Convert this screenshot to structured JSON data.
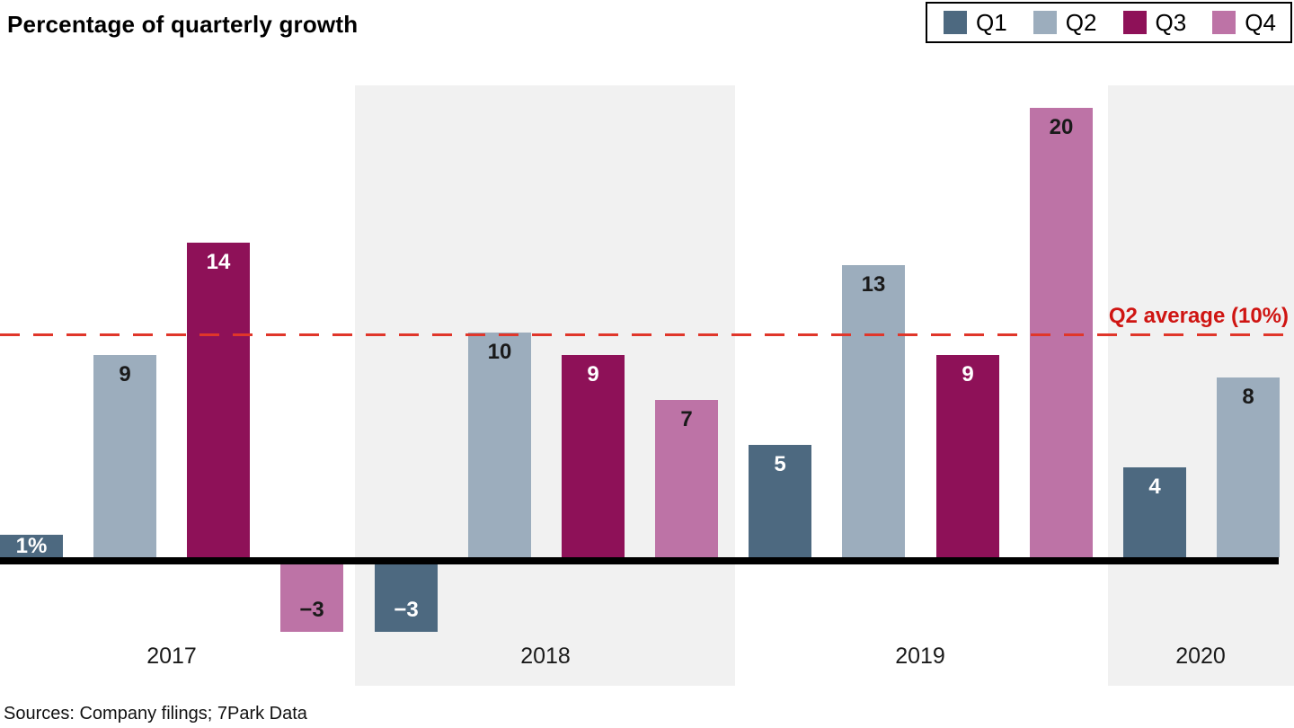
{
  "title": "Percentage of quarterly growth",
  "legend": {
    "items": [
      {
        "label": "Q1",
        "color": "#4d6980"
      },
      {
        "label": "Q2",
        "color": "#9cadbd"
      },
      {
        "label": "Q3",
        "color": "#8e1158"
      },
      {
        "label": "Q4",
        "color": "#bd73a6"
      }
    ]
  },
  "reference_line": {
    "label": "Q2 average (10%)",
    "value": 10,
    "line_color": "#e0362a",
    "label_color": "#cf1512"
  },
  "source": "Sources: Company filings; 7Park Data",
  "colors": {
    "highlight_band": "#f1f1f1",
    "axis": "#000000",
    "label_on_dark": "#ffffff",
    "label_on_light": "#1a1a1a"
  },
  "chart_data": {
    "type": "bar",
    "categories": [
      "2017",
      "2018",
      "2019",
      "2020"
    ],
    "series": [
      {
        "name": "Q1",
        "color": "#4d6980",
        "label_color": "#ffffff",
        "values": [
          1,
          -3,
          5,
          4
        ]
      },
      {
        "name": "Q2",
        "color": "#9cadbd",
        "label_color": "#1a1a1a",
        "values": [
          9,
          10,
          13,
          8
        ]
      },
      {
        "name": "Q3",
        "color": "#8e1158",
        "label_color": "#ffffff",
        "values": [
          14,
          9,
          9,
          null
        ]
      },
      {
        "name": "Q4",
        "color": "#bd73a6",
        "label_color": "#1a1a1a",
        "values": [
          -3,
          7,
          20,
          null
        ]
      }
    ],
    "bar_labels": [
      [
        "1%",
        "9",
        "14",
        "−3"
      ],
      [
        "−3",
        "10",
        "9",
        "7"
      ],
      [
        "5",
        "13",
        "9",
        "20"
      ],
      [
        "4",
        "8",
        null,
        null
      ]
    ],
    "title": "Percentage of quarterly growth",
    "xlabel": "",
    "ylabel": "",
    "ylim": [
      -5,
      21
    ],
    "y_axis_visible": false,
    "grid": false,
    "highlighted_categories": [
      "2018",
      "2020"
    ],
    "legend_position": "top-right",
    "reference_line_value": 10
  }
}
